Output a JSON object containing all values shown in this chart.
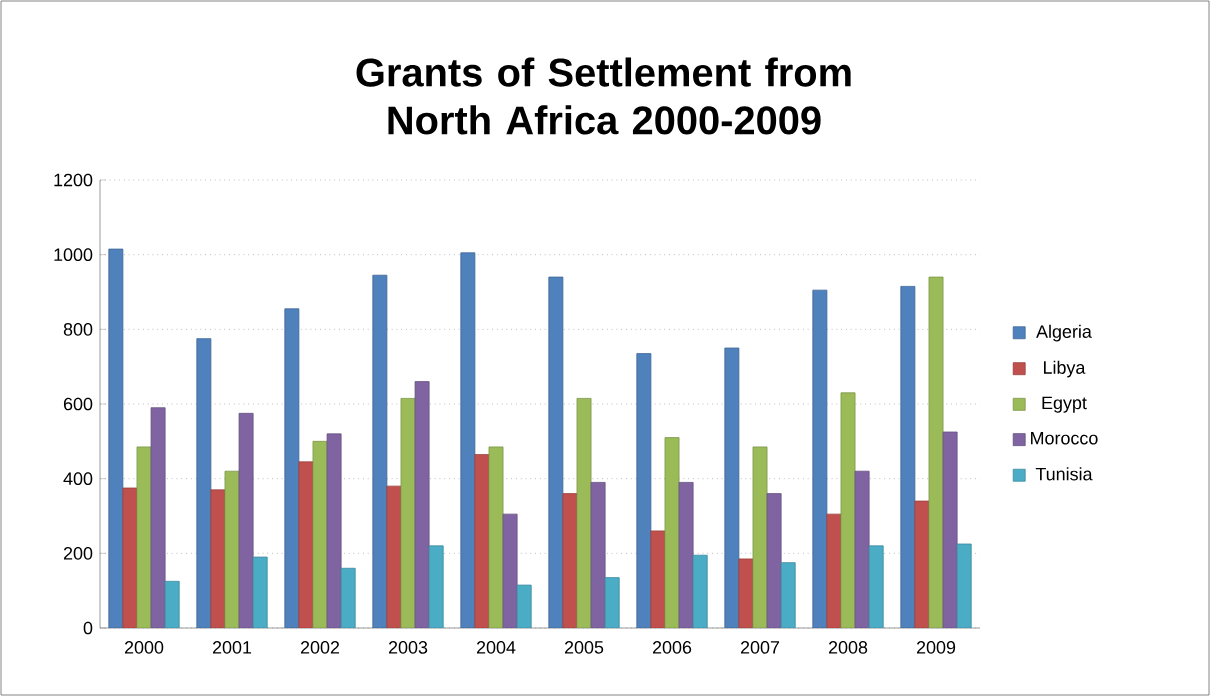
{
  "chart_data": {
    "type": "bar",
    "title": "Grants of Settlement from North Africa 2000-2009",
    "categories": [
      "2000",
      "2001",
      "2002",
      "2003",
      "2004",
      "2005",
      "2006",
      "2007",
      "2008",
      "2009"
    ],
    "series": [
      {
        "name": "Algeria",
        "color": "#4f81bd",
        "values": [
          1015,
          775,
          855,
          945,
          1005,
          940,
          735,
          750,
          905,
          915
        ]
      },
      {
        "name": "Libya",
        "color": "#c0504d",
        "values": [
          375,
          370,
          445,
          380,
          465,
          360,
          260,
          185,
          305,
          340
        ]
      },
      {
        "name": "Egypt",
        "color": "#9bbb59",
        "values": [
          485,
          420,
          500,
          615,
          485,
          615,
          510,
          485,
          630,
          940
        ]
      },
      {
        "name": "Morocco",
        "color": "#8064a2",
        "values": [
          590,
          575,
          520,
          660,
          305,
          390,
          390,
          360,
          420,
          525
        ]
      },
      {
        "name": "Tunisia",
        "color": "#4bacc6",
        "values": [
          125,
          190,
          160,
          220,
          115,
          135,
          195,
          175,
          220,
          225
        ]
      }
    ],
    "ylim": [
      0,
      1200
    ],
    "yticks": [
      0,
      200,
      400,
      600,
      800,
      1000,
      1200
    ],
    "grid": "y",
    "legend": "right"
  }
}
